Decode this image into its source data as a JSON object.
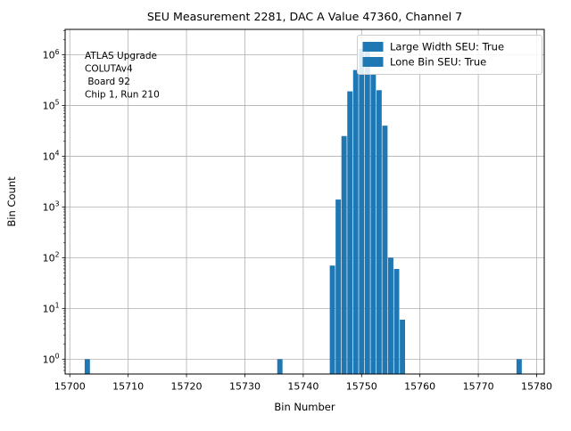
{
  "chart_data": {
    "type": "bar",
    "title": "SEU Measurement 2281, DAC A Value 47360, Channel 7",
    "xlabel": "Bin Number",
    "ylabel": "Bin Count",
    "yscale": "log",
    "grid": true,
    "xlim": [
      15699.2,
      15781.3
    ],
    "ylim": [
      0.51,
      3160000
    ],
    "x_ticks": [
      15700,
      15710,
      15720,
      15730,
      15740,
      15750,
      15760,
      15770,
      15780
    ],
    "y_tick_exponents": [
      0,
      1,
      2,
      3,
      4,
      5,
      6
    ],
    "bins": [
      15703,
      15736,
      15745,
      15746,
      15747,
      15748,
      15749,
      15750,
      15751,
      15752,
      15753,
      15754,
      15755,
      15756,
      15757,
      15777
    ],
    "counts": [
      1,
      1,
      70,
      1400,
      25000,
      190000,
      500000,
      1300000,
      1150000,
      420000,
      200000,
      40000,
      100,
      60,
      6,
      1
    ],
    "bar_color": "#1f77b4",
    "grid_color": "#b0b0b0",
    "spine_color": "#000000",
    "legend_position": "upper right",
    "legend_entries": [
      "Large Width SEU: True",
      "Lone Bin SEU: True"
    ],
    "annotation_lines": [
      "ATLAS Upgrade",
      "COLUTAv4",
      " Board 92",
      "Chip 1, Run 210"
    ]
  }
}
